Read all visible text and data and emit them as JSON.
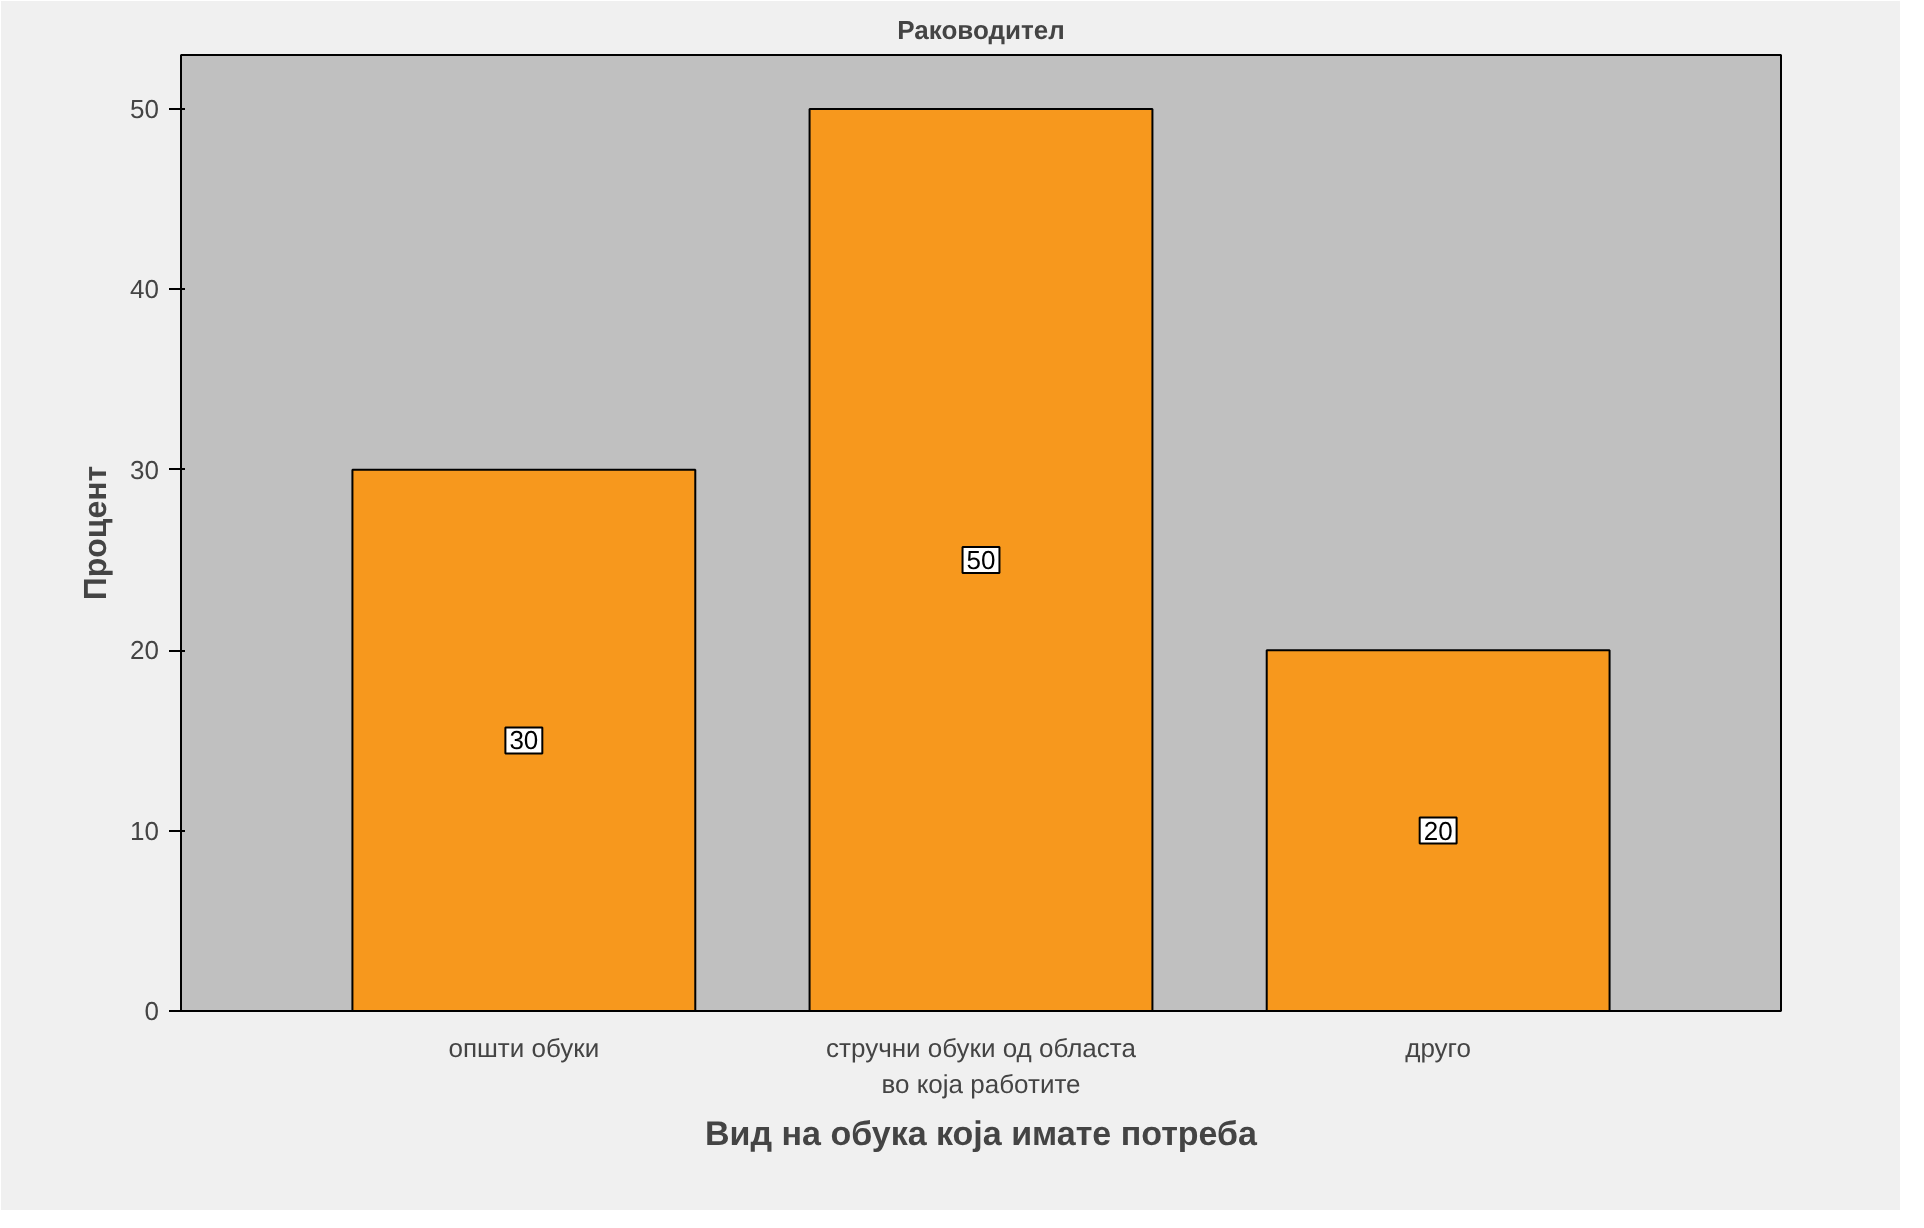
{
  "chart_data": {
    "type": "bar",
    "title": "Раководител",
    "xlabel": "Вид на обука која имате потреба",
    "ylabel": "Процент",
    "categories": [
      "општи обуки",
      "стручни обуки од областа\nво која работите",
      "друго"
    ],
    "values": [
      30,
      50,
      20
    ],
    "color": "#f7981d",
    "ylim": [
      0,
      53
    ],
    "yticks": [
      0,
      10,
      20,
      30,
      40,
      50
    ],
    "grid": false,
    "data_labels": true
  }
}
